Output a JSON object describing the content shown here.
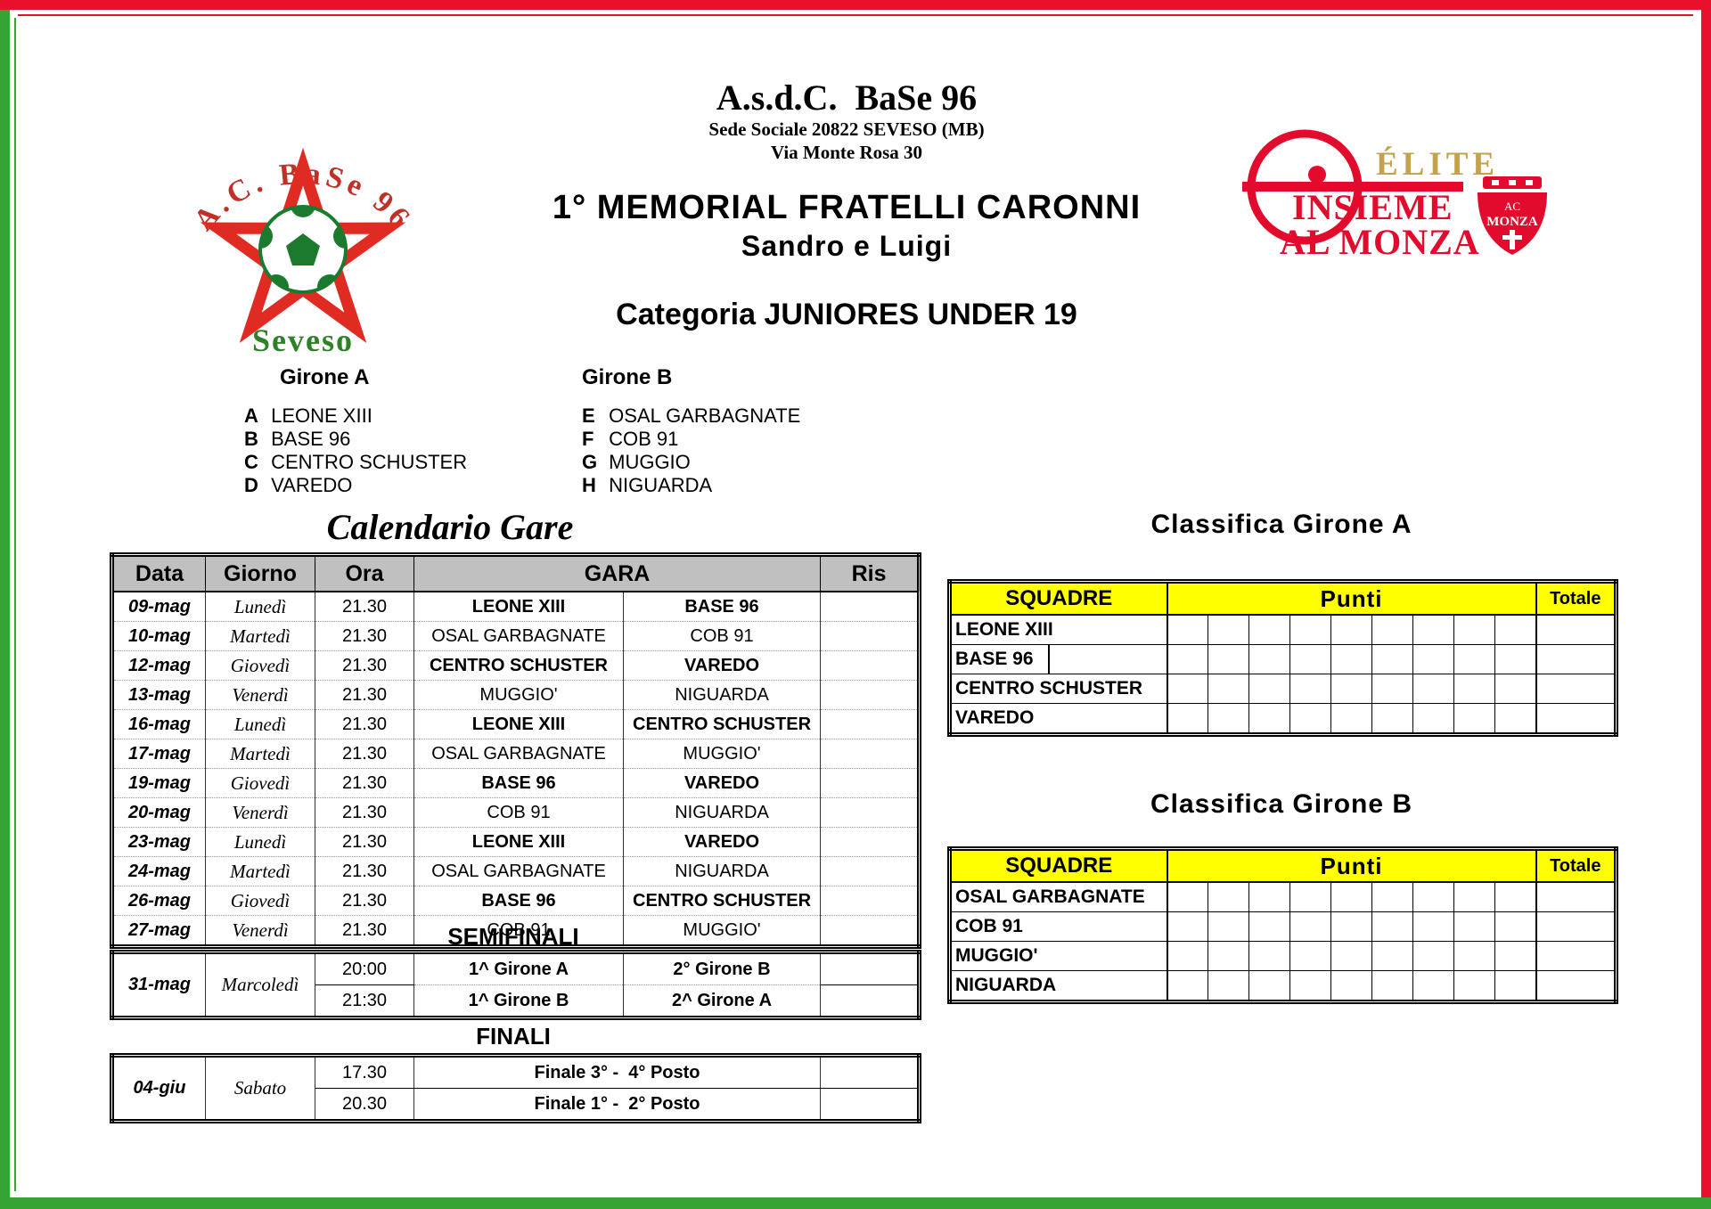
{
  "header": {
    "club_title": "A.s.d.C.  BaSe 96",
    "address_line1": "Sede Sociale 20822 SEVESO (MB)",
    "address_line2": "Via Monte Rosa 30",
    "tournament_title": "1° MEMORIAL FRATELLI CARONNI",
    "tournament_subtitle": "Sandro e Luigi",
    "category_title": "Categoria JUNIORES UNDER 19"
  },
  "club_logo": {
    "arc_text": "A.C. BaSe 96",
    "city": "Seveso"
  },
  "monza_logo": {
    "elite": "ÉLITE",
    "insieme": "INSIEME",
    "al_monza": "AL MONZA",
    "shield_ac": "AC",
    "shield_monza": "MONZA"
  },
  "groups": [
    {
      "title": "Girone A",
      "teams": [
        {
          "letter": "A",
          "name": "LEONE XIII"
        },
        {
          "letter": "B",
          "name": "BASE 96"
        },
        {
          "letter": "C",
          "name": "CENTRO SCHUSTER"
        },
        {
          "letter": "D",
          "name": "VAREDO"
        }
      ]
    },
    {
      "title": "Girone B",
      "teams": [
        {
          "letter": "E",
          "name": "OSAL GARBAGNATE"
        },
        {
          "letter": "F",
          "name": "COB 91"
        },
        {
          "letter": "G",
          "name": "MUGGIO"
        },
        {
          "letter": "H",
          "name": "NIGUARDA"
        }
      ]
    }
  ],
  "calendar": {
    "title": "Calendario Gare",
    "headers": {
      "data": "Data",
      "giorno": "Giorno",
      "ora": "Ora",
      "gara": "GARA",
      "ris": "Ris"
    },
    "rows": [
      {
        "data": "09-mag",
        "giorno": "Lunedì",
        "ora": "21.30",
        "home": "LEONE XIII",
        "away": "BASE 96",
        "bold": true,
        "ris": ""
      },
      {
        "data": "10-mag",
        "giorno": "Martedì",
        "ora": "21.30",
        "home": "OSAL GARBAGNATE",
        "away": "COB 91",
        "bold": false,
        "ris": ""
      },
      {
        "data": "12-mag",
        "giorno": "Giovedì",
        "ora": "21.30",
        "home": "CENTRO SCHUSTER",
        "away": "VAREDO",
        "bold": true,
        "ris": ""
      },
      {
        "data": "13-mag",
        "giorno": "Venerdì",
        "ora": "21.30",
        "home": "MUGGIO'",
        "away": "NIGUARDA",
        "bold": false,
        "ris": ""
      },
      {
        "data": "16-mag",
        "giorno": "Lunedì",
        "ora": "21.30",
        "home": "LEONE XIII",
        "away": "CENTRO SCHUSTER",
        "bold": true,
        "ris": ""
      },
      {
        "data": "17-mag",
        "giorno": "Martedì",
        "ora": "21.30",
        "home": "OSAL GARBAGNATE",
        "away": "MUGGIO'",
        "bold": false,
        "ris": ""
      },
      {
        "data": "19-mag",
        "giorno": "Giovedì",
        "ora": "21.30",
        "home": "BASE 96",
        "away": "VAREDO",
        "bold": true,
        "ris": ""
      },
      {
        "data": "20-mag",
        "giorno": "Venerdì",
        "ora": "21.30",
        "home": "COB 91",
        "away": "NIGUARDA",
        "bold": false,
        "ris": ""
      },
      {
        "data": "23-mag",
        "giorno": "Lunedì",
        "ora": "21.30",
        "home": "LEONE XIII",
        "away": "VAREDO",
        "bold": true,
        "ris": ""
      },
      {
        "data": "24-mag",
        "giorno": "Martedì",
        "ora": "21.30",
        "home": "OSAL GARBAGNATE",
        "away": "NIGUARDA",
        "bold": false,
        "ris": ""
      },
      {
        "data": "26-mag",
        "giorno": "Giovedì",
        "ora": "21.30",
        "home": "BASE 96",
        "away": "CENTRO SCHUSTER",
        "bold": true,
        "ris": ""
      },
      {
        "data": "27-mag",
        "giorno": "Venerdì",
        "ora": "21.30",
        "home": "COB 91",
        "away": "MUGGIO'",
        "bold": false,
        "ris": ""
      }
    ]
  },
  "semifinals": {
    "title": "SEMIFINALI",
    "data": "31-mag",
    "giorno": "Marcoledì",
    "rows": [
      {
        "ora": "20:00",
        "home": "1^ Girone A",
        "away": "2° Girone B",
        "ris": ""
      },
      {
        "ora": "21:30",
        "home": "1^ Girone B",
        "away": "2^ Girone A",
        "ris": ""
      }
    ]
  },
  "finals": {
    "title": "FINALI",
    "data": "04-giu",
    "giorno": "Sabato",
    "rows": [
      {
        "ora": "17.30",
        "match": "Finale 3° -  4° Posto",
        "ris": ""
      },
      {
        "ora": "20.30",
        "match": "Finale 1° -  2° Posto",
        "ris": ""
      }
    ]
  },
  "standings": [
    {
      "title": "Classifica Girone A",
      "squadre_label": "SQUADRE",
      "punti_label": "Punti",
      "totale_label": "Totale",
      "points_columns": 9,
      "teams": [
        {
          "name": "LEONE XIII",
          "divider": false
        },
        {
          "name": "BASE 96",
          "divider": true
        },
        {
          "name": "CENTRO SCHUSTER",
          "divider": false
        },
        {
          "name": "VAREDO",
          "divider": false
        }
      ]
    },
    {
      "title": "Classifica Girone B",
      "squadre_label": "SQUADRE",
      "punti_label": "Punti",
      "totale_label": "Totale",
      "points_columns": 9,
      "teams": [
        {
          "name": "OSAL GARBAGNATE",
          "divider": false
        },
        {
          "name": "COB 91",
          "divider": false
        },
        {
          "name": "MUGGIO'",
          "divider": false
        },
        {
          "name": "NIGUARDA",
          "divider": false
        }
      ]
    }
  ],
  "colors": {
    "frame_red": "#e8112d",
    "frame_green": "#36a335",
    "header_gray": "#c0c0c0",
    "highlight_yellow": "#ffff00",
    "monza_red": "#e30b2d",
    "elite_gold": "#c4a24b",
    "club_red": "#e02b22",
    "club_green": "#1b7a2e"
  }
}
